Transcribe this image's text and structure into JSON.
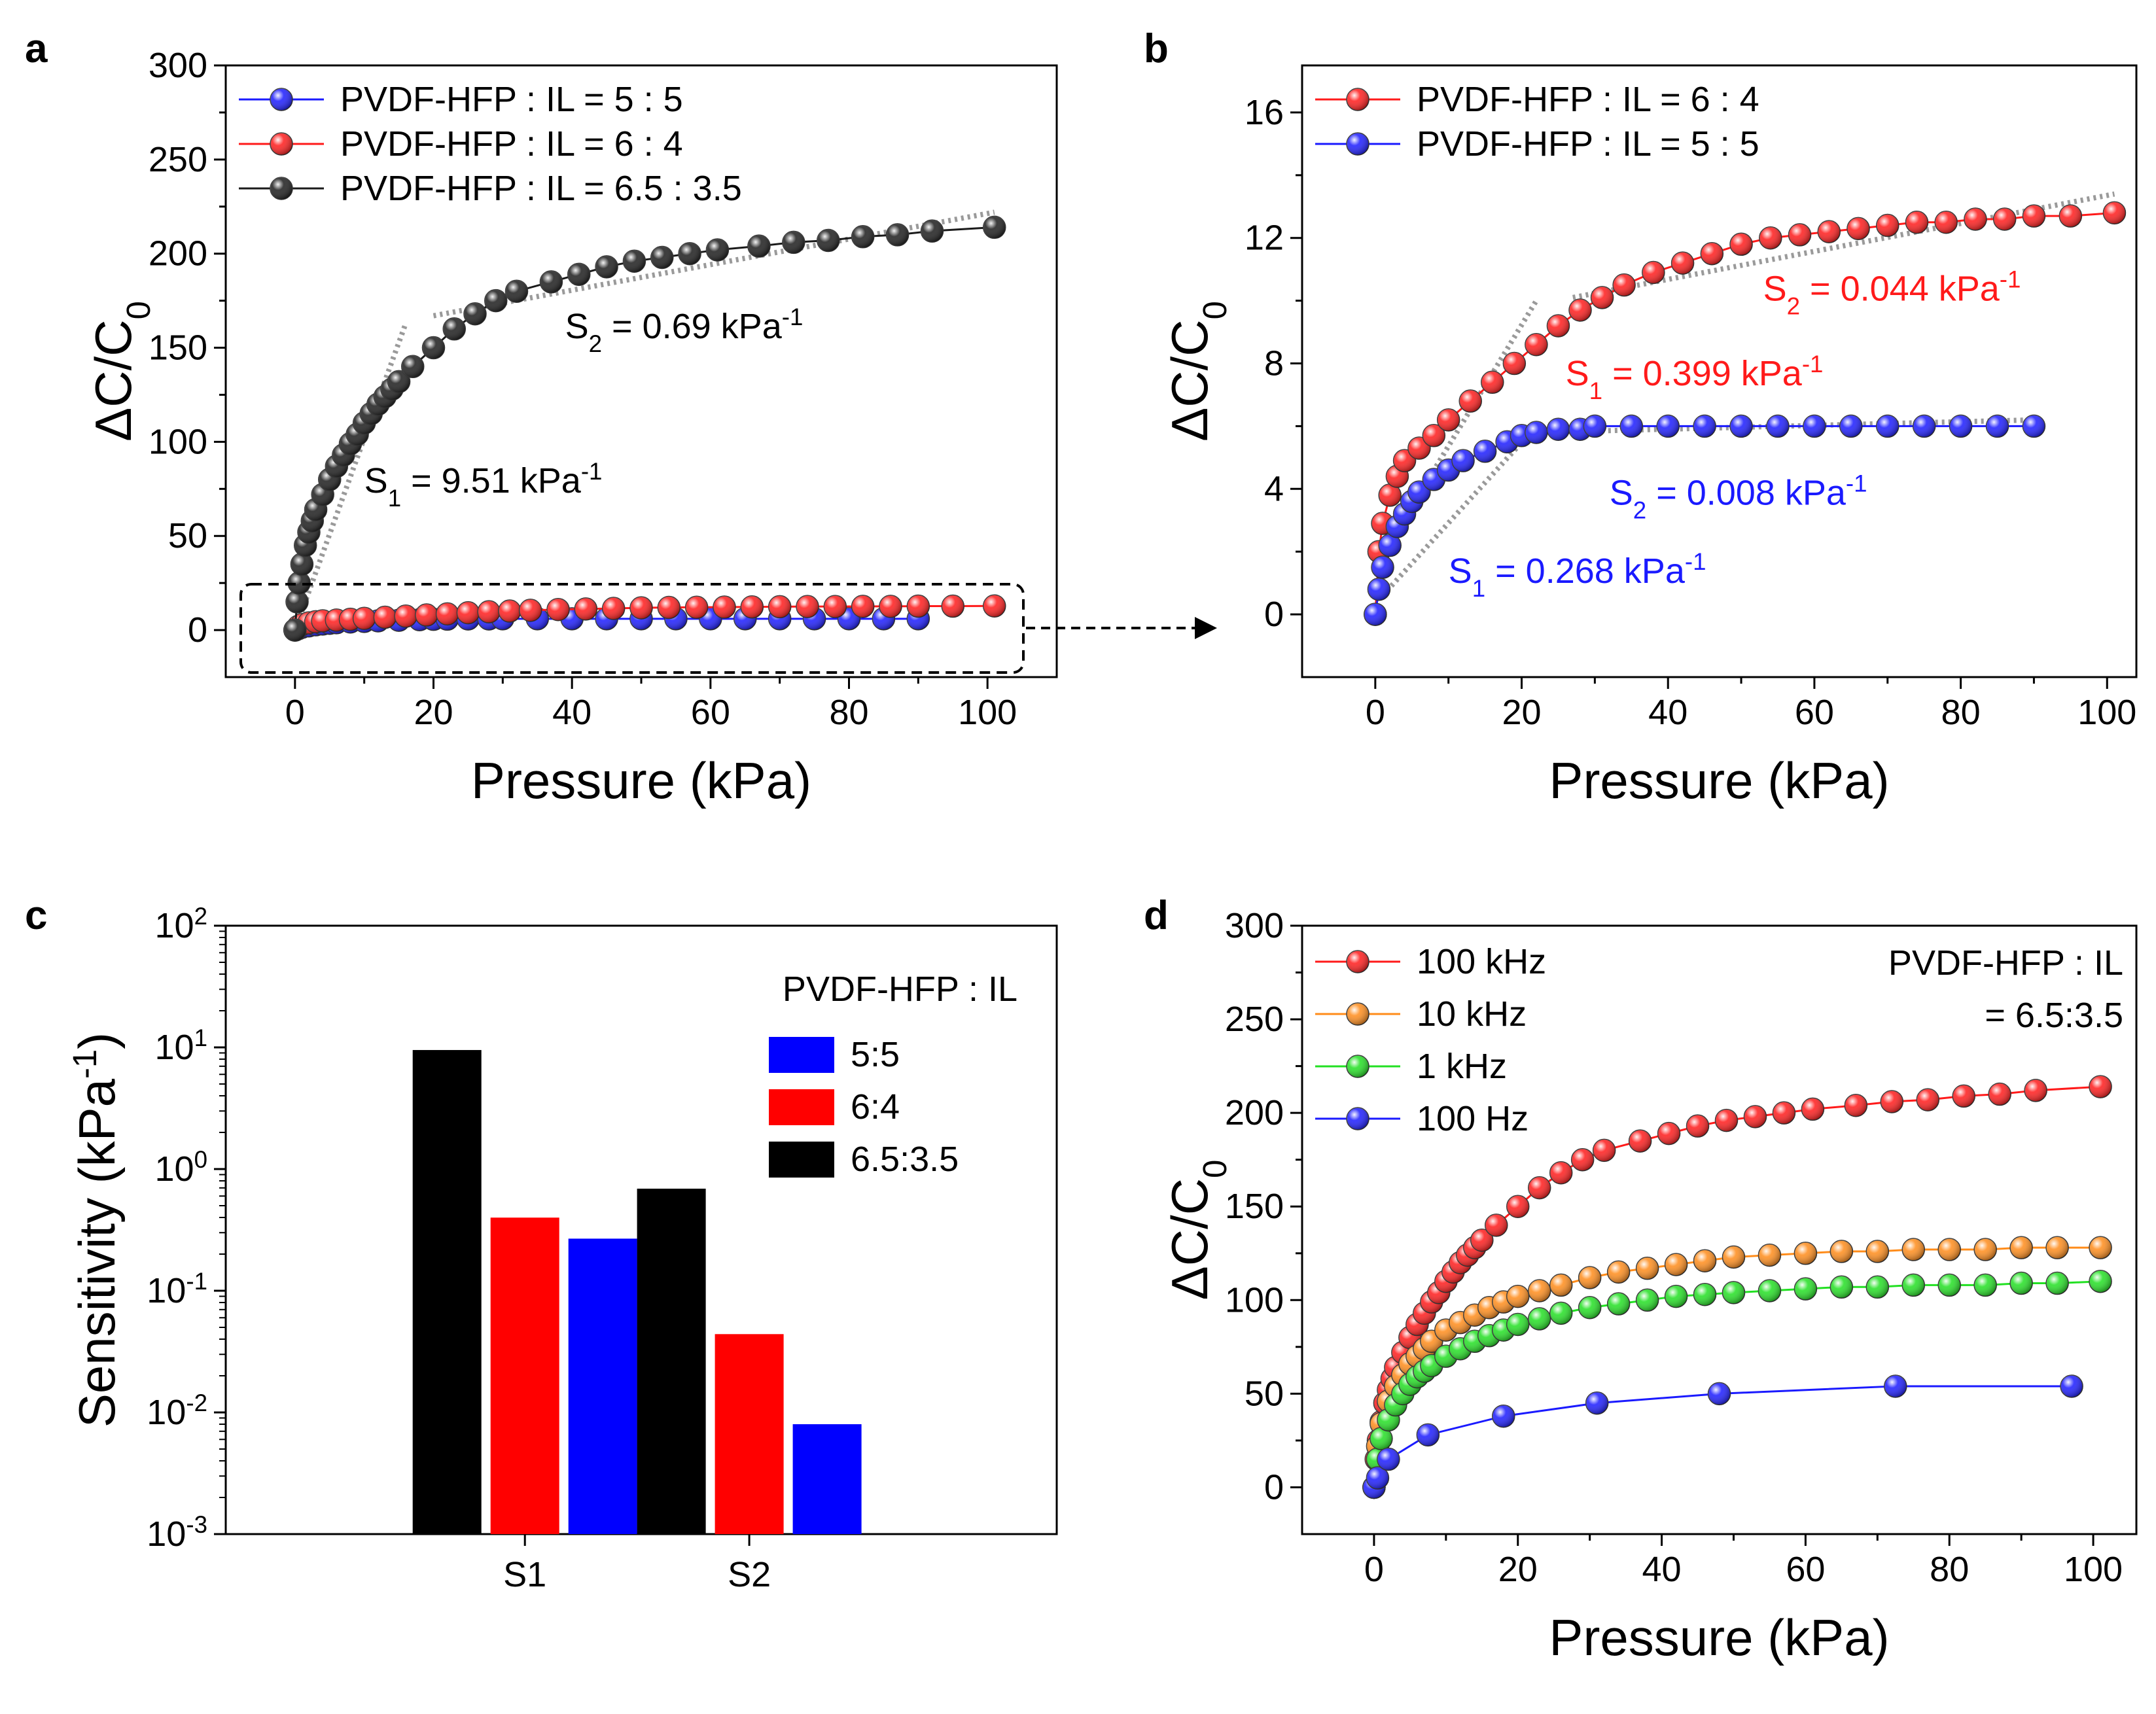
{
  "chart_data": [
    {
      "panel": "a",
      "type": "line",
      "xlabel": "Pressure (kPa)",
      "ylabel": "ΔC/C",
      "ylabel_sub": "0",
      "xlim": [
        -10,
        110
      ],
      "ylim": [
        -25,
        300
      ],
      "xticks": [
        0,
        20,
        40,
        60,
        80,
        100
      ],
      "yticks": [
        0,
        50,
        100,
        150,
        200,
        250,
        300
      ],
      "legend": "top-left",
      "series": [
        {
          "name": "PVDF-HFP : IL = 5 : 5",
          "color": "#1a1aff",
          "x": [
            0,
            0.5,
            1,
            2,
            3,
            4,
            5,
            6,
            8,
            10,
            12,
            15,
            18,
            20,
            22,
            25,
            28,
            30,
            35,
            40,
            45,
            50,
            55,
            60,
            65,
            70,
            75,
            80,
            85,
            90
          ],
          "y": [
            0,
            0.8,
            1.5,
            2.2,
            2.8,
            3.2,
            3.6,
            3.9,
            4.3,
            4.6,
            4.9,
            5.2,
            5.5,
            5.7,
            5.8,
            5.9,
            5.9,
            6.0,
            6.0,
            6.0,
            6.0,
            6.0,
            6.0,
            6.0,
            6.0,
            6.0,
            6.0,
            6.0,
            6.0,
            6.0
          ]
        },
        {
          "name": "PVDF-HFP : IL = 6 : 4",
          "color": "#ff1a1a",
          "x": [
            0,
            0.5,
            1,
            2,
            3,
            4,
            6,
            8,
            10,
            13,
            16,
            19,
            22,
            25,
            28,
            31,
            34,
            38,
            42,
            46,
            50,
            54,
            58,
            62,
            66,
            70,
            74,
            78,
            82,
            86,
            90,
            95,
            101
          ],
          "y": [
            0,
            2.0,
            2.9,
            3.8,
            4.4,
            4.9,
            5.3,
            5.7,
            6.2,
            6.8,
            7.4,
            8.0,
            8.6,
            9.2,
            9.7,
            10.1,
            10.5,
            10.9,
            11.2,
            11.5,
            11.8,
            12.0,
            12.1,
            12.2,
            12.3,
            12.4,
            12.5,
            12.5,
            12.6,
            12.6,
            12.7,
            12.7,
            12.8
          ]
        },
        {
          "name": "PVDF-HFP : IL = 6.5 : 3.5",
          "color": "#1a1a1a",
          "x": [
            0,
            0.3,
            0.6,
            1,
            1.5,
            2,
            2.5,
            3,
            4,
            5,
            6,
            7,
            8,
            9,
            10,
            11,
            12,
            13,
            14,
            15,
            17,
            20,
            23,
            26,
            29,
            32,
            37,
            41,
            45,
            49,
            53,
            57,
            61,
            67,
            72,
            77,
            82,
            87,
            92,
            101
          ],
          "y": [
            0,
            15,
            25,
            35,
            45,
            52,
            58,
            64,
            72,
            80,
            87,
            93,
            99,
            104,
            110,
            115,
            120,
            124,
            128,
            132,
            140,
            150,
            160,
            168,
            175,
            180,
            185,
            189,
            193,
            196,
            198,
            200,
            202,
            204,
            206,
            207,
            209,
            210,
            212,
            214
          ]
        }
      ],
      "fits": [
        {
          "x": [
            0,
            16
          ],
          "y": [
            0,
            163
          ]
        },
        {
          "x": [
            20,
            101
          ],
          "y": [
            167,
            222
          ]
        }
      ],
      "annotations": [
        {
          "text": "S",
          "sub": "1",
          "rest": " = 9.51 kPa",
          "sup": "-1",
          "x": 10,
          "y": 73
        },
        {
          "text": "S",
          "sub": "2",
          "rest": " = 0.69 kPa",
          "sup": "-1",
          "x": 39,
          "y": 155
        }
      ]
    },
    {
      "panel": "b",
      "type": "line",
      "xlabel": "Pressure (kPa)",
      "ylabel": "ΔC/C",
      "ylabel_sub": "0",
      "xlim": [
        -10,
        104
      ],
      "ylim": [
        -2,
        17.5
      ],
      "xticks": [
        0,
        20,
        40,
        60,
        80,
        100
      ],
      "yticks": [
        0,
        4,
        8,
        12,
        16
      ],
      "legend": "top-left",
      "series": [
        {
          "name": "PVDF-HFP : IL = 6 : 4",
          "color": "#ff1a1a",
          "x": [
            0,
            0.5,
            1,
            2,
            3,
            4,
            6,
            8,
            10,
            13,
            16,
            19,
            22,
            25,
            28,
            31,
            34,
            38,
            42,
            46,
            50,
            54,
            58,
            62,
            66,
            70,
            74,
            78,
            82,
            86,
            90,
            95,
            101
          ],
          "y": [
            0,
            2.0,
            2.9,
            3.8,
            4.4,
            4.9,
            5.3,
            5.7,
            6.2,
            6.8,
            7.4,
            8.0,
            8.6,
            9.2,
            9.7,
            10.1,
            10.5,
            10.9,
            11.2,
            11.5,
            11.8,
            12.0,
            12.1,
            12.2,
            12.3,
            12.4,
            12.5,
            12.5,
            12.6,
            12.6,
            12.7,
            12.7,
            12.8
          ]
        },
        {
          "name": "PVDF-HFP : IL = 5 : 5",
          "color": "#1a1aff",
          "x": [
            0,
            0.5,
            1,
            2,
            3,
            4,
            5,
            6,
            8,
            10,
            12,
            15,
            18,
            20,
            22,
            25,
            28,
            30,
            35,
            40,
            45,
            50,
            55,
            60,
            65,
            70,
            75,
            80,
            85,
            90
          ],
          "y": [
            0,
            0.8,
            1.5,
            2.2,
            2.8,
            3.2,
            3.6,
            3.9,
            4.3,
            4.6,
            4.9,
            5.2,
            5.5,
            5.7,
            5.8,
            5.9,
            5.9,
            6.0,
            6.0,
            6.0,
            6.0,
            6.0,
            6.0,
            6.0,
            6.0,
            6.0,
            6.0,
            6.0,
            6.0,
            6.0
          ]
        }
      ],
      "fits": [
        {
          "x": [
            0,
            22
          ],
          "y": [
            1.5,
            10.0
          ]
        },
        {
          "x": [
            27,
            101
          ],
          "y": [
            10.1,
            13.4
          ]
        },
        {
          "x": [
            1,
            22
          ],
          "y": [
            0.6,
            6.0
          ]
        },
        {
          "x": [
            22,
            90
          ],
          "y": [
            5.8,
            6.2
          ]
        }
      ],
      "annotations": [
        {
          "text": "S",
          "sub": "2",
          "rest": " = 0.044 kPa",
          "sup": "-1",
          "x": 53,
          "y": 10.0,
          "color": "#ff1a1a"
        },
        {
          "text": "S",
          "sub": "1",
          "rest": " = 0.399 kPa",
          "sup": "-1",
          "x": 26,
          "y": 7.3,
          "color": "#ff1a1a"
        },
        {
          "text": "S",
          "sub": "2",
          "rest": " = 0.008 kPa",
          "sup": "-1",
          "x": 32,
          "y": 3.5,
          "color": "#1a1aff"
        },
        {
          "text": "S",
          "sub": "1",
          "rest": " = 0.268 kPa",
          "sup": "-1",
          "x": 10,
          "y": 1.0,
          "color": "#1a1aff"
        }
      ]
    },
    {
      "panel": "c",
      "type": "bar",
      "ylabel": "Sensitivity (kPa",
      "ylabel_sup": "-1",
      "ylabel_end": ")",
      "yscale": "log",
      "ylim": [
        0.001,
        100
      ],
      "yticks": [
        {
          "base": "10",
          "exp": "-3"
        },
        {
          "base": "10",
          "exp": "-2"
        },
        {
          "base": "10",
          "exp": "-1"
        },
        {
          "base": "10",
          "exp": "0"
        },
        {
          "base": "10",
          "exp": "1"
        },
        {
          "base": "10",
          "exp": "2"
        }
      ],
      "categories": [
        "S1",
        "S2"
      ],
      "legend_title": "PVDF-HFP : IL",
      "legend": "top-right",
      "series": [
        {
          "name": "6.5:3.5",
          "color": "#000000",
          "values": [
            9.51,
            0.69
          ]
        },
        {
          "name": "6:4",
          "color": "#ff0000",
          "values": [
            0.399,
            0.044
          ]
        },
        {
          "name": "5:5",
          "color": "#0000ff",
          "values": [
            0.268,
            0.008
          ]
        }
      ],
      "legend_order": [
        "5:5",
        "6:4",
        "6.5:3.5"
      ]
    },
    {
      "panel": "d",
      "type": "line",
      "xlabel": "Pressure (kPa)",
      "ylabel": "ΔC/C",
      "ylabel_sub": "0",
      "xlim": [
        -10,
        106
      ],
      "ylim": [
        -25,
        300
      ],
      "xticks": [
        0,
        20,
        40,
        60,
        80,
        100
      ],
      "yticks": [
        0,
        50,
        100,
        150,
        200,
        250,
        300
      ],
      "legend": "top-left",
      "note_lines": [
        "PVDF-HFP : IL",
        "= 6.5:3.5"
      ],
      "series": [
        {
          "name": "100 kHz",
          "color": "#ff1a1a",
          "x": [
            0,
            0.3,
            0.6,
            1,
            1.5,
            2,
            2.5,
            3,
            4,
            5,
            6,
            7,
            8,
            9,
            10,
            11,
            12,
            13,
            14,
            15,
            17,
            20,
            23,
            26,
            29,
            32,
            37,
            41,
            45,
            49,
            53,
            57,
            61,
            67,
            72,
            77,
            82,
            87,
            92,
            101
          ],
          "y": [
            0,
            15,
            25,
            35,
            45,
            52,
            58,
            64,
            72,
            80,
            87,
            93,
            99,
            104,
            110,
            115,
            120,
            124,
            128,
            132,
            140,
            150,
            160,
            168,
            175,
            180,
            185,
            189,
            193,
            196,
            198,
            200,
            202,
            204,
            206,
            207,
            209,
            210,
            212,
            214
          ]
        },
        {
          "name": "10 kHz",
          "color": "#ff8c1a",
          "x": [
            0,
            0.5,
            1,
            2,
            3,
            4,
            5,
            6,
            7,
            8,
            10,
            12,
            14,
            16,
            18,
            20,
            23,
            26,
            30,
            34,
            38,
            42,
            46,
            50,
            55,
            60,
            65,
            70,
            75,
            80,
            85,
            90,
            95,
            101
          ],
          "y": [
            0,
            22,
            34,
            46,
            54,
            60,
            66,
            70,
            74,
            78,
            84,
            88,
            92,
            96,
            99,
            102,
            105,
            108,
            112,
            115,
            117,
            119,
            121,
            123,
            124,
            125,
            126,
            126,
            127,
            127,
            127,
            128,
            128,
            128
          ]
        },
        {
          "name": "1 kHz",
          "color": "#22e022",
          "x": [
            0,
            0.5,
            1,
            2,
            3,
            4,
            5,
            6,
            7,
            8,
            10,
            12,
            14,
            16,
            18,
            20,
            23,
            26,
            30,
            34,
            38,
            42,
            46,
            50,
            55,
            60,
            65,
            70,
            75,
            80,
            85,
            90,
            95,
            101
          ],
          "y": [
            0,
            15,
            26,
            36,
            44,
            50,
            55,
            59,
            62,
            65,
            70,
            74,
            78,
            81,
            84,
            87,
            90,
            93,
            96,
            98,
            100,
            102,
            103,
            104,
            105,
            106,
            107,
            107,
            108,
            108,
            108,
            109,
            109,
            110
          ]
        },
        {
          "name": "100 Hz",
          "color": "#1a1aff",
          "x": [
            0,
            0.5,
            2,
            7.5,
            18,
            31,
            48,
            72.5,
            97
          ],
          "y": [
            0,
            5,
            15,
            28,
            38,
            45,
            50,
            54,
            54
          ]
        }
      ]
    }
  ]
}
